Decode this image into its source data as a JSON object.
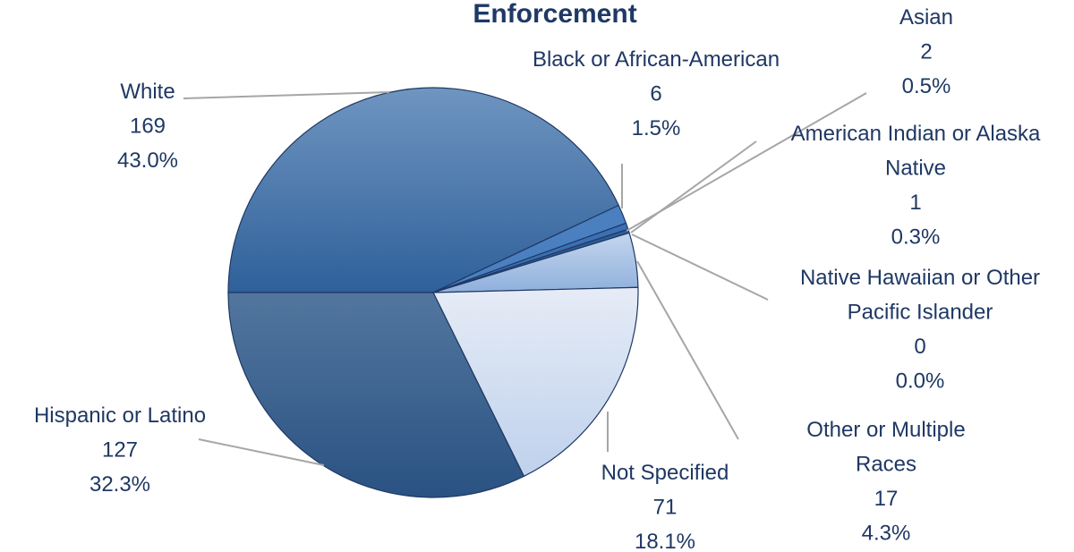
{
  "chart_data": {
    "type": "pie",
    "title": "Enforcement",
    "slices": [
      {
        "name": "White",
        "count": 169,
        "percent": "43.0%",
        "value": 43.0,
        "color": "#3f6fa6"
      },
      {
        "name": "Black or African-American",
        "count": 6,
        "percent": "1.5%",
        "value": 1.5,
        "color": "#4a80c0"
      },
      {
        "name": "Asian",
        "count": 2,
        "percent": "0.5%",
        "value": 0.5,
        "color": "#3a70b4"
      },
      {
        "name": "American Indian or Alaska Native",
        "count": 1,
        "percent": "0.3%",
        "value": 0.3,
        "color": "#2e5d94"
      },
      {
        "name": "Native Hawaiian or Other Pacific Islander",
        "count": 0,
        "percent": "0.0%",
        "value": 0.0,
        "color": "#4f7fb4"
      },
      {
        "name": "Other or Multiple Races",
        "count": 17,
        "percent": "4.3%",
        "value": 4.3,
        "color": "#a8c4e6"
      },
      {
        "name": "Not Specified",
        "count": 71,
        "percent": "18.1%",
        "value": 18.1,
        "color": "#d2def0"
      },
      {
        "name": "Hispanic or Latino",
        "count": 127,
        "percent": "32.3%",
        "value": 32.3,
        "color": "#345f8e"
      }
    ]
  }
}
